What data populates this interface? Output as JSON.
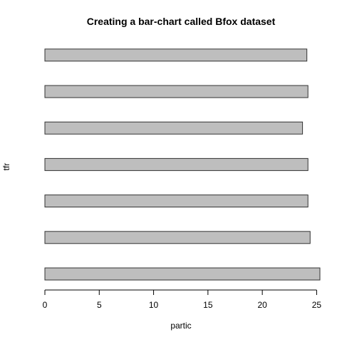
{
  "chart_data": {
    "type": "bar",
    "orientation": "horizontal",
    "title": "Creating a bar-chart called Bfox dataset",
    "xlabel": "partic",
    "ylabel": "tfr",
    "values": [
      25.3,
      24.4,
      24.2,
      24.2,
      23.7,
      24.2,
      24.1
    ],
    "xlim": [
      0,
      25.3
    ],
    "xticks": [
      0,
      5,
      10,
      15,
      20,
      25
    ],
    "grid": false,
    "legend": "none",
    "bar_color": "#bebebe",
    "bar_border_color": "#333333"
  }
}
